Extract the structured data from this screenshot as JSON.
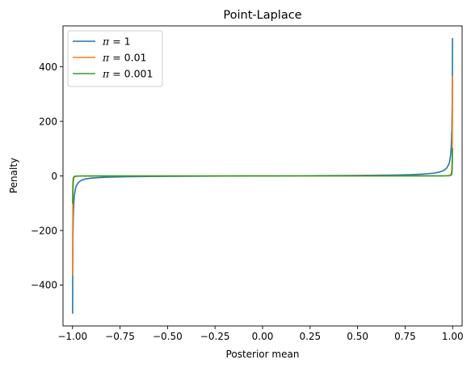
{
  "chart_data": {
    "type": "line",
    "title": "Point-Laplace",
    "xlabel": "Posterior mean",
    "ylabel": "Penalty",
    "xlim": [
      -1.05,
      1.05
    ],
    "ylim": [
      -550,
      550
    ],
    "grid": false,
    "legend_position": "top-left",
    "xticks": [
      -1.0,
      -0.75,
      -0.5,
      -0.25,
      0.0,
      0.25,
      0.5,
      0.75,
      1.0
    ],
    "xtick_labels": [
      "−1.00",
      "−0.75",
      "−0.50",
      "−0.25",
      "0.00",
      "0.25",
      "0.50",
      "0.75",
      "1.00"
    ],
    "yticks": [
      -400,
      -200,
      0,
      200,
      400
    ],
    "ytick_labels": [
      "−400",
      "−200",
      "0",
      "200",
      "400"
    ],
    "series": [
      {
        "name": "π = 1",
        "name_symbol": "π",
        "name_value": " = 1",
        "color": "#1f77b4",
        "x": [
          -0.9995,
          -0.999,
          -0.998,
          -0.996,
          -0.993,
          -0.99,
          -0.985,
          -0.98,
          -0.97,
          -0.96,
          -0.95,
          -0.93,
          -0.9,
          -0.85,
          -0.8,
          -0.7,
          -0.6,
          -0.5,
          -0.4,
          -0.3,
          -0.2,
          -0.1,
          0.0,
          0.1,
          0.2,
          0.3,
          0.4,
          0.5,
          0.6,
          0.7,
          0.75,
          0.8,
          0.85,
          0.9,
          0.93,
          0.95,
          0.96,
          0.97,
          0.98,
          0.985,
          0.99,
          0.993,
          0.996,
          0.998,
          0.999,
          0.9995
        ],
        "y": [
          -505,
          -370,
          -240,
          -150,
          -95,
          -70,
          -48,
          -37,
          -25,
          -19,
          -15,
          -11,
          -8,
          -5.6,
          -4.3,
          -2.9,
          -2.1,
          -1.6,
          -1.2,
          -0.9,
          -0.6,
          -0.3,
          0,
          0.3,
          0.6,
          0.9,
          1.2,
          1.6,
          2.3,
          3.3,
          4.0,
          5.2,
          7.0,
          10,
          14,
          19,
          23,
          30,
          42,
          55,
          80,
          110,
          170,
          270,
          380,
          505
        ]
      },
      {
        "name": "π = 0.01",
        "name_symbol": "π",
        "name_value": " = 0.01",
        "color": "#ff7f0e",
        "x": [
          -0.9995,
          -0.999,
          -0.998,
          -0.997,
          -0.995,
          -0.993,
          -0.99,
          -0.985,
          -0.98,
          -0.97,
          -0.95,
          -0.9,
          -0.8,
          -0.5,
          0.0,
          0.5,
          0.8,
          0.9,
          0.95,
          0.97,
          0.98,
          0.985,
          0.99,
          0.993,
          0.995,
          0.997,
          0.998,
          0.999,
          0.9995
        ],
        "y": [
          -365,
          -200,
          -85,
          -45,
          -18,
          -9,
          -4.5,
          -2.2,
          -1.4,
          -0.8,
          -0.4,
          -0.2,
          -0.1,
          -0.05,
          0,
          0.05,
          0.1,
          0.2,
          0.4,
          0.8,
          1.4,
          2.2,
          4.5,
          9,
          18,
          45,
          85,
          200,
          365
        ]
      },
      {
        "name": "π = 0.001",
        "name_symbol": "π",
        "name_value": " = 0.001",
        "color": "#2ca02c",
        "x": [
          -0.9995,
          -0.999,
          -0.998,
          -0.997,
          -0.995,
          -0.993,
          -0.99,
          -0.985,
          -0.98,
          -0.97,
          -0.95,
          -0.9,
          -0.5,
          0.0,
          0.5,
          0.9,
          0.95,
          0.97,
          0.98,
          0.985,
          0.99,
          0.993,
          0.995,
          0.997,
          0.998,
          0.999,
          0.9995
        ],
        "y": [
          -102,
          -62,
          -28,
          -14,
          -6,
          -3.2,
          -1.8,
          -1.0,
          -0.6,
          -0.35,
          -0.2,
          -0.1,
          -0.03,
          0,
          0.03,
          0.1,
          0.2,
          0.35,
          0.6,
          1.0,
          1.8,
          3.2,
          6,
          14,
          28,
          62,
          102
        ]
      }
    ]
  }
}
